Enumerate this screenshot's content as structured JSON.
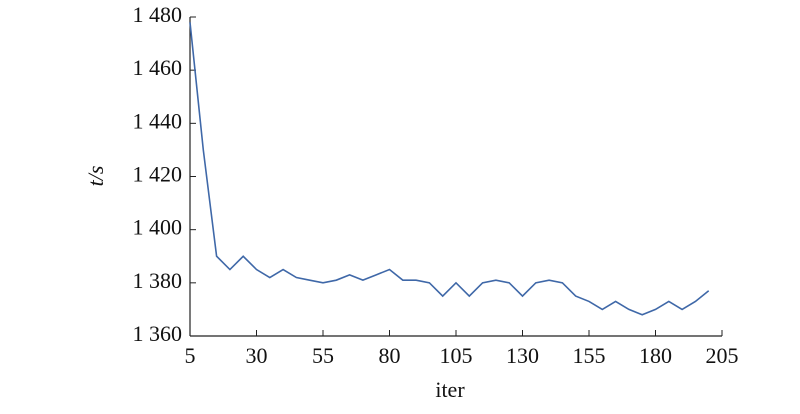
{
  "chart_data": {
    "type": "line",
    "x_label": "iter",
    "y_label": "t/s",
    "x": [
      5,
      10,
      15,
      20,
      25,
      30,
      35,
      40,
      45,
      50,
      55,
      60,
      65,
      70,
      75,
      80,
      85,
      90,
      95,
      100,
      105,
      110,
      115,
      120,
      125,
      130,
      135,
      140,
      145,
      150,
      155,
      160,
      165,
      170,
      175,
      180,
      185,
      190,
      195,
      200
    ],
    "series": [
      {
        "color": "#3f68a8",
        "values": [
          1478,
          1430,
          1390,
          1385,
          1390,
          1385,
          1382,
          1385,
          1382,
          1381,
          1380,
          1381,
          1383,
          1381,
          1383,
          1385,
          1381,
          1381,
          1380,
          1375,
          1380,
          1375,
          1380,
          1381,
          1380,
          1375,
          1380,
          1381,
          1380,
          1375,
          1373,
          1370,
          1373,
          1370,
          1368,
          1370,
          1373,
          1370,
          1373,
          1377
        ]
      }
    ],
    "xlim": [
      5,
      205
    ],
    "xticks": [
      5,
      30,
      55,
      80,
      105,
      130,
      155,
      180,
      205
    ],
    "ylim": [
      1360,
      1480
    ],
    "yticks": [
      {
        "value": 1360,
        "label": "1 360"
      },
      {
        "value": 1380,
        "label": "1 380"
      },
      {
        "value": 1400,
        "label": "1 400"
      },
      {
        "value": 1420,
        "label": "1 420"
      },
      {
        "value": 1440,
        "label": "1 440"
      },
      {
        "value": 1460,
        "label": "1 460"
      },
      {
        "value": 1480,
        "label": "1 480"
      }
    ],
    "grid": false
  }
}
